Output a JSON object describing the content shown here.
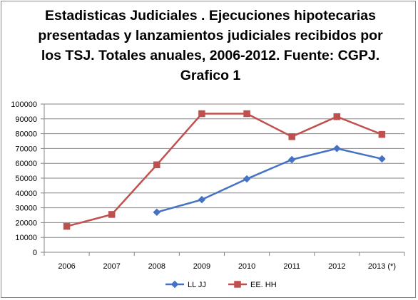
{
  "chart_data": {
    "type": "line",
    "title": "Estadisticas Judiciales . Ejecuciones hipotecarias presentadas y lanzamientos judiciales recibidos por los TSJ. Totales anuales, 2006-2012. Fuente: CGPJ. Grafico 1",
    "categories": [
      "2006",
      "2007",
      "2008",
      "2009",
      "2010",
      "2011",
      "2012",
      "2013 (*)"
    ],
    "y_ticks": [
      "0",
      "10000",
      "20000",
      "30000",
      "40000",
      "50000",
      "60000",
      "70000",
      "80000",
      "90000",
      "100000"
    ],
    "ylim": [
      0,
      100000
    ],
    "grid": true,
    "legend_position": "bottom",
    "series": [
      {
        "name": "LL JJ",
        "color": "#4572c4",
        "marker": "diamond",
        "values": [
          null,
          null,
          27000,
          35500,
          49500,
          62500,
          70000,
          63000
        ]
      },
      {
        "name": "EE. HH",
        "color": "#c0504d",
        "marker": "square",
        "values": [
          17500,
          25500,
          59000,
          93500,
          93500,
          78000,
          91500,
          79500
        ]
      }
    ]
  }
}
